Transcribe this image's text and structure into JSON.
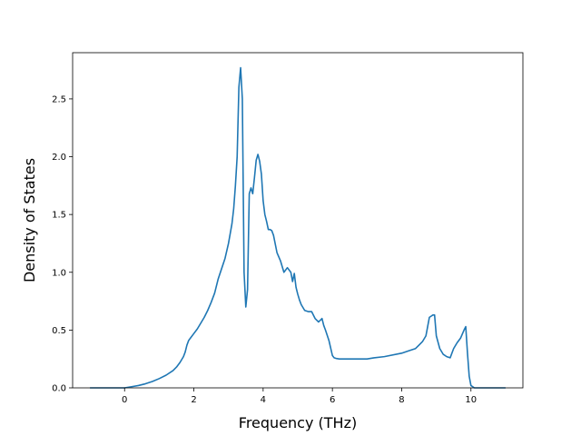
{
  "chart_data": {
    "type": "line",
    "xlabel": "Frequency (THz)",
    "ylabel": "Density of States",
    "xlim": [
      -1.5,
      11.5
    ],
    "ylim": [
      0,
      2.9
    ],
    "xticks": [
      0,
      2,
      4,
      6,
      8,
      10
    ],
    "yticks": [
      0.0,
      0.5,
      1.0,
      1.5,
      2.0,
      2.5
    ],
    "xtick_labels": [
      "0",
      "2",
      "4",
      "6",
      "8",
      "10"
    ],
    "ytick_labels": [
      "0.0",
      "0.5",
      "1.0",
      "1.5",
      "2.0",
      "2.5"
    ],
    "grid": false,
    "series": [
      {
        "color": "#1f77b4",
        "x": [
          -1.0,
          -0.5,
          0.0,
          0.2,
          0.4,
          0.6,
          0.8,
          1.0,
          1.2,
          1.4,
          1.5,
          1.6,
          1.7,
          1.75,
          1.8,
          1.85,
          1.9,
          2.0,
          2.1,
          2.2,
          2.3,
          2.4,
          2.5,
          2.6,
          2.7,
          2.8,
          2.9,
          3.0,
          3.1,
          3.15,
          3.2,
          3.25,
          3.3,
          3.35,
          3.4,
          3.45,
          3.5,
          3.55,
          3.6,
          3.65,
          3.7,
          3.75,
          3.8,
          3.85,
          3.9,
          3.95,
          4.0,
          4.05,
          4.1,
          4.15,
          4.2,
          4.25,
          4.3,
          4.4,
          4.5,
          4.6,
          4.7,
          4.8,
          4.85,
          4.9,
          4.95,
          5.0,
          5.05,
          5.1,
          5.2,
          5.3,
          5.4,
          5.5,
          5.6,
          5.7,
          5.75,
          5.8,
          5.9,
          6.0,
          6.05,
          6.1,
          6.2,
          6.5,
          7.0,
          7.2,
          7.5,
          8.0,
          8.2,
          8.4,
          8.5,
          8.6,
          8.7,
          8.75,
          8.8,
          8.85,
          8.9,
          8.95,
          9.0,
          9.1,
          9.2,
          9.3,
          9.4,
          9.5,
          9.6,
          9.7,
          9.8,
          9.85,
          9.9,
          9.95,
          10.0,
          10.1,
          10.5,
          11.0
        ],
        "y": [
          0.0,
          0.0,
          0.0,
          0.01,
          0.02,
          0.035,
          0.055,
          0.08,
          0.11,
          0.15,
          0.18,
          0.22,
          0.27,
          0.31,
          0.37,
          0.41,
          0.43,
          0.47,
          0.51,
          0.56,
          0.61,
          0.67,
          0.74,
          0.82,
          0.94,
          1.03,
          1.12,
          1.25,
          1.42,
          1.55,
          1.75,
          2.0,
          2.6,
          2.77,
          2.5,
          1.0,
          0.7,
          0.85,
          1.68,
          1.73,
          1.68,
          1.82,
          1.97,
          2.02,
          1.96,
          1.85,
          1.62,
          1.5,
          1.44,
          1.37,
          1.37,
          1.36,
          1.32,
          1.17,
          1.1,
          1.0,
          1.04,
          1.0,
          0.92,
          0.99,
          0.87,
          0.81,
          0.76,
          0.72,
          0.67,
          0.66,
          0.66,
          0.6,
          0.57,
          0.6,
          0.54,
          0.5,
          0.41,
          0.28,
          0.26,
          0.255,
          0.25,
          0.25,
          0.25,
          0.26,
          0.27,
          0.3,
          0.32,
          0.34,
          0.37,
          0.4,
          0.45,
          0.53,
          0.61,
          0.62,
          0.63,
          0.63,
          0.45,
          0.34,
          0.29,
          0.27,
          0.26,
          0.34,
          0.39,
          0.43,
          0.5,
          0.53,
          0.3,
          0.1,
          0.02,
          0.0,
          0.0,
          0.0
        ]
      }
    ]
  }
}
